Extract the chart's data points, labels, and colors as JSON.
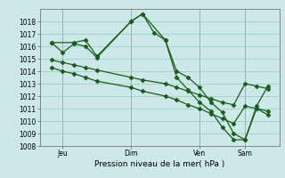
{
  "background_color": "#cce8e8",
  "grid_color": "#99ccbb",
  "line_color": "#1a5c1a",
  "xlabel": "Pression niveau de la mer( hPa )",
  "ylim": [
    1008,
    1019
  ],
  "yticks": [
    1008,
    1009,
    1010,
    1011,
    1012,
    1013,
    1014,
    1015,
    1016,
    1017,
    1018
  ],
  "xtick_labels": [
    "Jeu",
    "Dim",
    "Ven",
    "Sam"
  ],
  "xtick_positions": [
    1,
    4,
    7,
    9
  ],
  "xlim": [
    0,
    10.5
  ],
  "series1_x": [
    0.5,
    1.0,
    1.5,
    2.0,
    2.5,
    4.0,
    4.5,
    5.0,
    5.5,
    6.0,
    6.5,
    7.0,
    7.5,
    8.0,
    8.5,
    9.0,
    9.5,
    10.0
  ],
  "series1_y": [
    1016.3,
    1015.5,
    1016.2,
    1016.0,
    1015.1,
    1018.0,
    1018.6,
    1017.1,
    1016.5,
    1014.0,
    1013.5,
    1012.7,
    1011.5,
    1010.7,
    1009.0,
    1008.5,
    1011.0,
    1010.5
  ],
  "series2_x": [
    0.5,
    1.5,
    2.0,
    2.5,
    4.0,
    4.5,
    5.5,
    6.0,
    6.5,
    7.0,
    7.5,
    8.0,
    8.5,
    9.0,
    9.5,
    10.0
  ],
  "series2_y": [
    1016.3,
    1016.3,
    1016.5,
    1015.2,
    1018.0,
    1018.6,
    1016.5,
    1013.5,
    1012.5,
    1011.5,
    1010.8,
    1009.5,
    1008.5,
    1008.5,
    1011.2,
    1012.8
  ],
  "series3_x": [
    0.5,
    1.0,
    1.5,
    2.0,
    2.5,
    4.0,
    4.5,
    5.5,
    6.0,
    6.5,
    7.0,
    7.5,
    8.0,
    8.5,
    9.0,
    9.5,
    10.0
  ],
  "series3_y": [
    1014.9,
    1014.7,
    1014.5,
    1014.3,
    1014.1,
    1013.5,
    1013.3,
    1013.0,
    1012.7,
    1012.4,
    1012.1,
    1011.8,
    1011.5,
    1011.3,
    1013.0,
    1012.8,
    1012.6
  ],
  "series4_x": [
    0.5,
    1.0,
    1.5,
    2.0,
    2.5,
    4.0,
    4.5,
    5.5,
    6.0,
    6.5,
    7.0,
    7.5,
    8.0,
    8.5,
    9.0,
    9.5,
    10.0
  ],
  "series4_y": [
    1014.3,
    1014.0,
    1013.8,
    1013.5,
    1013.2,
    1012.7,
    1012.4,
    1012.0,
    1011.7,
    1011.3,
    1011.0,
    1010.6,
    1010.2,
    1009.8,
    1011.2,
    1011.0,
    1010.8
  ]
}
